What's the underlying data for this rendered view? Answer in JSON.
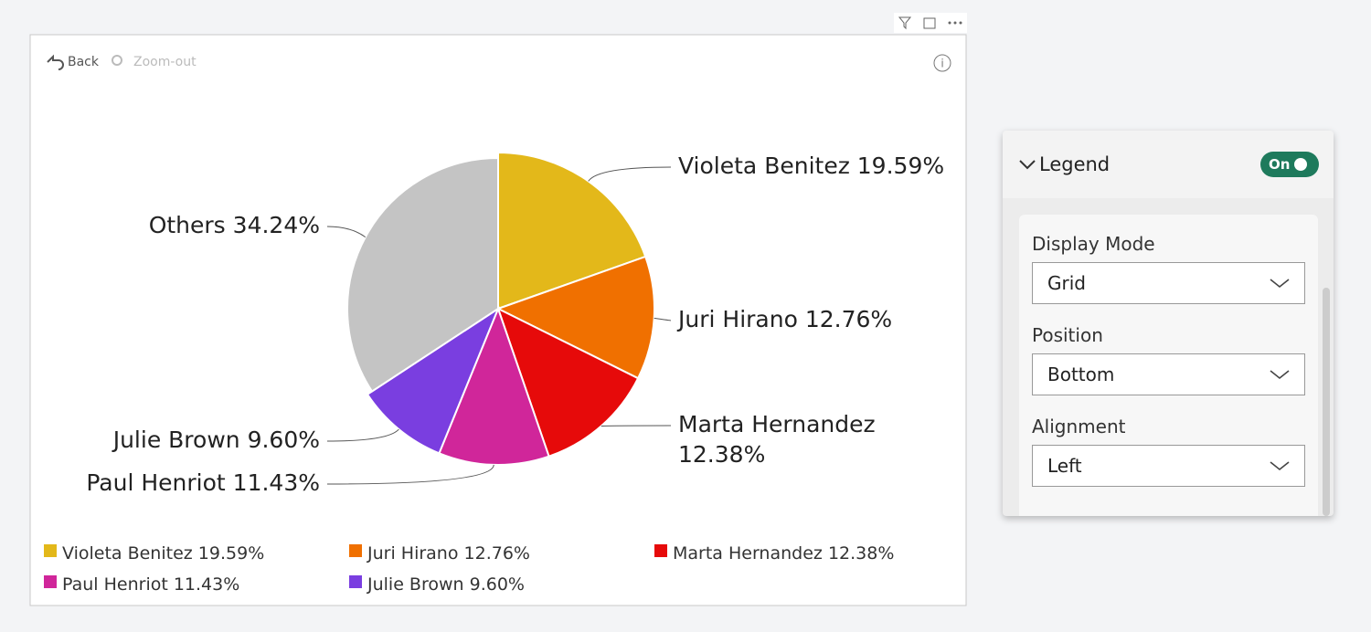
{
  "toolbar": {
    "back": "Back",
    "zoom_out": "Zoom-out"
  },
  "chart_data": {
    "type": "pie",
    "categories": [
      "Violeta Benitez",
      "Juri Hirano",
      "Marta Hernandez",
      "Paul Henriot",
      "Julie Brown",
      "Others"
    ],
    "values": [
      19.59,
      12.76,
      12.38,
      11.43,
      9.6,
      34.24
    ],
    "value_labels": [
      "19.59%",
      "12.76%",
      "12.38%",
      "11.43%",
      "9.60%",
      "34.24%"
    ],
    "colors": [
      "#e3b81a",
      "#f07000",
      "#e60a0a",
      "#d0269a",
      "#7a3ee0",
      "#c4c4c4"
    ],
    "legend_count": 5
  },
  "legend_panel": {
    "title": "Legend",
    "toggle": "On",
    "fields": [
      {
        "label": "Display Mode",
        "value": "Grid"
      },
      {
        "label": "Position",
        "value": "Bottom"
      },
      {
        "label": "Alignment",
        "value": "Left"
      }
    ]
  }
}
